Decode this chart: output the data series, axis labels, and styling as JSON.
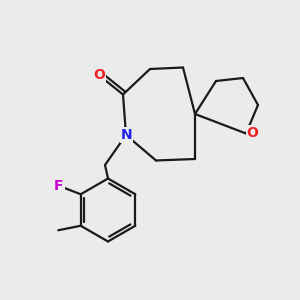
{
  "bg_color": "#ebebeb",
  "bond_color": "#1a1a1a",
  "N_color": "#2222ee",
  "O_color": "#ee2222",
  "F_color": "#cc00cc",
  "line_width": 1.6,
  "figsize": [
    3.0,
    3.0
  ],
  "dpi": 100,
  "xlim": [
    0,
    10
  ],
  "ylim": [
    0,
    10
  ]
}
